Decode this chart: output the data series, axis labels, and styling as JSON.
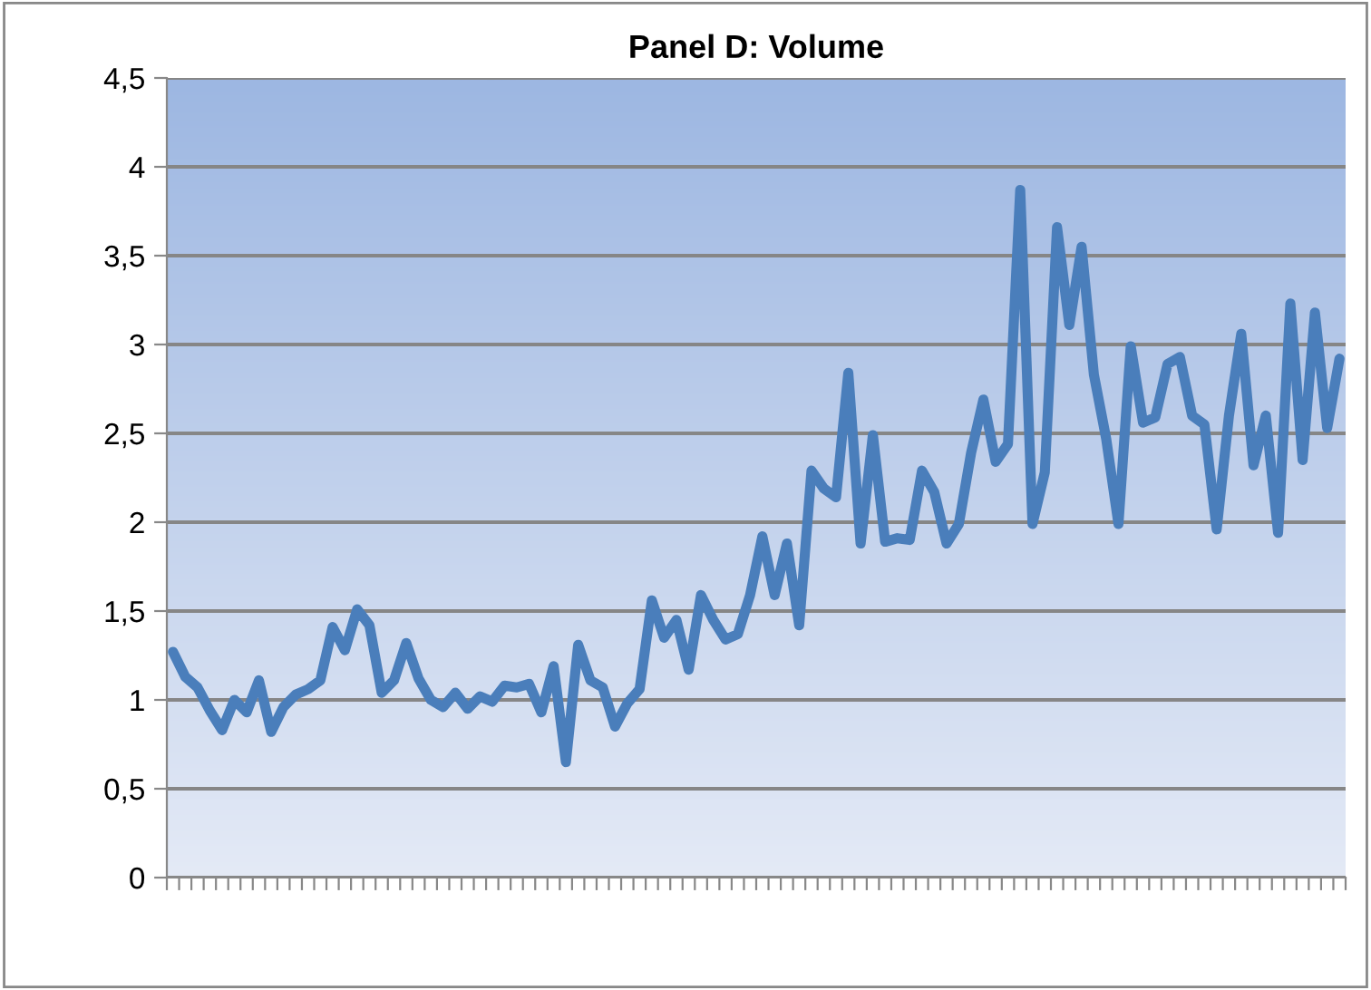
{
  "chart_data": {
    "type": "line",
    "title": "Panel D: Volume",
    "categories": [
      null,
      null,
      null,
      null,
      null,
      null,
      null,
      null,
      null,
      null,
      null,
      null,
      null,
      null,
      null,
      null,
      null,
      null,
      null,
      null,
      null,
      null,
      null,
      null,
      null,
      null,
      null,
      null,
      null,
      null,
      null,
      null,
      null,
      null,
      null,
      null,
      null,
      null,
      null,
      null,
      null,
      null,
      null,
      null,
      null,
      null,
      null,
      null,
      null,
      null,
      null,
      null,
      null,
      null,
      null,
      null,
      null,
      null,
      null,
      null,
      null,
      null,
      null,
      null,
      null,
      null,
      null,
      null,
      null,
      null,
      null,
      null,
      null,
      null,
      null,
      null,
      null,
      null,
      null,
      null,
      null,
      null,
      null,
      null,
      null,
      null,
      null,
      null,
      null,
      null,
      null,
      null,
      null,
      null,
      null,
      null
    ],
    "series": [
      {
        "color": "#4a7ebb",
        "values": [
          1.27,
          1.13,
          1.07,
          0.94,
          0.83,
          1.0,
          0.93,
          1.11,
          0.82,
          0.96,
          1.03,
          1.06,
          1.11,
          1.41,
          1.28,
          1.51,
          1.42,
          1.04,
          1.11,
          1.32,
          1.12,
          1.0,
          0.96,
          1.04,
          0.95,
          1.02,
          0.99,
          1.08,
          1.07,
          1.09,
          0.93,
          1.19,
          0.65,
          1.31,
          1.11,
          1.07,
          0.85,
          0.98,
          1.06,
          1.56,
          1.35,
          1.45,
          1.17,
          1.59,
          1.45,
          1.34,
          1.37,
          1.59,
          1.92,
          1.59,
          1.88,
          1.42,
          2.29,
          2.19,
          2.14,
          2.84,
          1.88,
          2.49,
          1.89,
          1.91,
          1.9,
          2.29,
          2.17,
          1.88,
          1.99,
          2.39,
          2.69,
          2.34,
          2.44,
          3.87,
          1.99,
          2.28,
          3.66,
          3.11,
          3.55,
          2.83,
          2.47,
          1.99,
          2.99,
          2.56,
          2.59,
          2.89,
          2.93,
          2.6,
          2.55,
          1.96,
          2.6,
          3.06,
          2.32,
          2.6,
          1.94,
          3.23,
          2.35,
          3.18,
          2.53,
          2.92
        ]
      }
    ],
    "ylim": [
      0,
      4.5
    ],
    "yticks": [
      0,
      {
        "value": 0.5,
        "label": "0,5"
      },
      1,
      {
        "value": 1.5,
        "label": "1,5"
      },
      2,
      {
        "value": 2.5,
        "label": "2,5"
      },
      3,
      {
        "value": 3.5,
        "label": "3,5"
      },
      4,
      {
        "value": 4.5,
        "label": "4,5"
      }
    ],
    "grid": "y",
    "marker": "none",
    "line_style": "solid"
  }
}
